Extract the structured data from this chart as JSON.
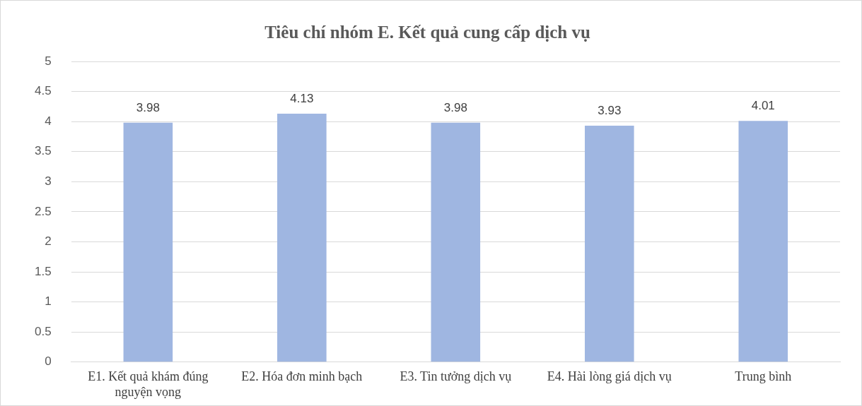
{
  "chart_data": {
    "type": "bar",
    "title": "Tiêu chí nhóm E. Kết quả cung cấp dịch vụ",
    "categories": [
      "E1. Kết quả khám đúng nguyện vọng",
      "E2. Hóa đơn minh bạch",
      "E3. Tin tưởng dịch vụ",
      "E4. Hài lòng giá dịch vụ",
      "Trung bình"
    ],
    "values": [
      3.98,
      4.13,
      3.98,
      3.93,
      4.01
    ],
    "color": "#9fb6e1",
    "ylim": [
      0,
      5
    ],
    "yticks": [
      0,
      0.5,
      1,
      1.5,
      2,
      2.5,
      3,
      3.5,
      4,
      4.5,
      5
    ],
    "grid": "y",
    "data_labels": true
  }
}
